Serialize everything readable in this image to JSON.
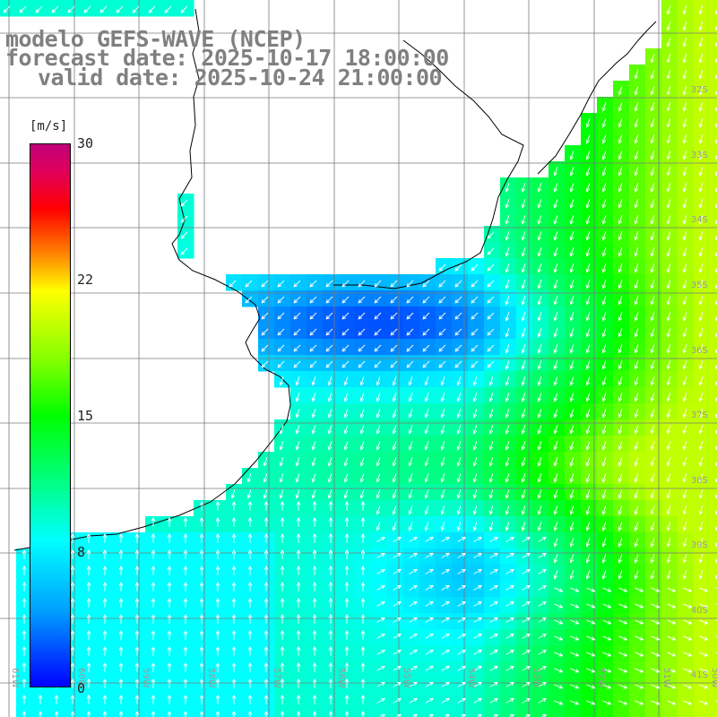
{
  "title": {
    "line1": "modelo GEFS-WAVE (NCEP)",
    "line2": "forecast date: 2025-10-17 18:00:00",
    "line3": "valid date: 2025-10-24 21:00:00"
  },
  "colorbar": {
    "unit": "[m/s]",
    "min": 0,
    "max": 30,
    "ticks": [
      "30",
      "22",
      "15",
      "8",
      "0"
    ],
    "tick_values": [
      30,
      22,
      15,
      8,
      0
    ]
  },
  "map": {
    "lat_labels": [
      "32S",
      "33S",
      "34S",
      "35S",
      "36S",
      "37S",
      "38S",
      "39S",
      "40S",
      "41S"
    ],
    "lon_labels": [
      "61W",
      "60W",
      "59W",
      "58W",
      "57W",
      "56W",
      "55W",
      "54W",
      "53W",
      "52W",
      "51W",
      "50W"
    ],
    "colors": {
      "land": "#ffffff",
      "coastline": "#000000",
      "grid": "#7a7a7a",
      "arrows": "#ffffff"
    }
  }
}
